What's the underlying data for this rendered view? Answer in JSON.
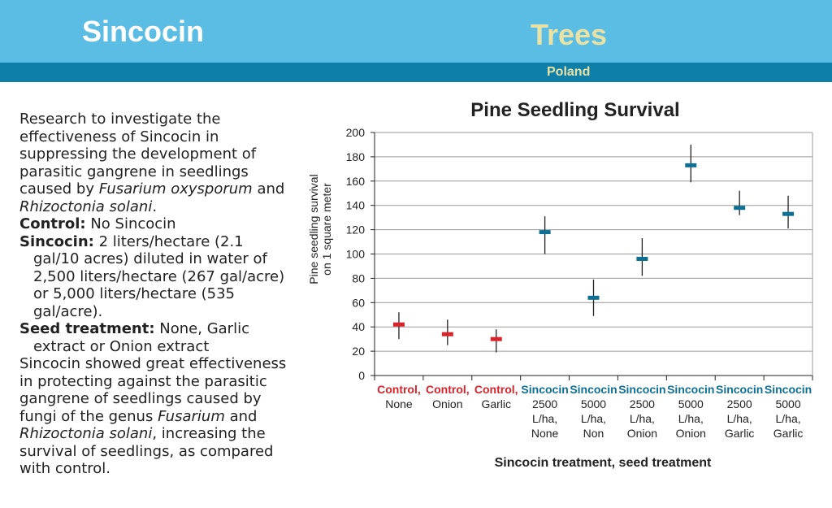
{
  "header": {
    "brand": "Sincocin",
    "section": "Trees",
    "country": "Poland"
  },
  "description": {
    "intro_a": "Research to investigate the effectiveness of Sincocin in suppressing the development of parasitic gangrene in seedlings caused by ",
    "intro_i1": "Fusarium oxysporum",
    "intro_b": " and ",
    "intro_i2": "Rhizoctonia solani",
    "intro_c": ".",
    "control_label": "Control:",
    "control_text": " No Sincocin",
    "sincocin_label": "Sincocin:",
    "sincocin_text": " 2 liters/hectare (2.1 gal/10 acres) diluted in water of 2,500 liters/hectare (267 gal/acre) or 5,000 liters/hectare (535 gal/acre).",
    "seed_label": "Seed treatment:",
    "seed_text": " None, Garlic extract or Onion extract",
    "concl_a": "Sincocin showed great effectiveness in protecting against the parasitic gangrene of seedlings caused by fungi of the genus ",
    "concl_i1": "Fusarium",
    "concl_b": " and ",
    "concl_i2": "Rhizoctonia solani",
    "concl_c": ", increasing the survival of seedlings, as compared with  control."
  },
  "chart_data": {
    "type": "scatter",
    "title": "Pine Seedling Survival",
    "ylabel": "Pine seedling survival on 1 square meter",
    "xlabel": "Sincocin treatment,  seed treatment",
    "ylim": [
      0,
      200
    ],
    "yticks": [
      0,
      20,
      40,
      60,
      80,
      100,
      120,
      140,
      160,
      180,
      200
    ],
    "grid": true,
    "categories": [
      {
        "lines": [
          "Control,",
          "None"
        ],
        "group": "control"
      },
      {
        "lines": [
          "Control,",
          "Onion"
        ],
        "group": "control"
      },
      {
        "lines": [
          "Control,",
          "Garlic"
        ],
        "group": "control"
      },
      {
        "lines": [
          "Sincocin",
          "2500",
          "L/ha,",
          "None"
        ],
        "group": "sincocin"
      },
      {
        "lines": [
          "Sincocin",
          "5000",
          "L/ha,",
          "Non"
        ],
        "group": "sincocin"
      },
      {
        "lines": [
          "Sincocin",
          "2500",
          "L/ha,",
          "Onion"
        ],
        "group": "sincocin"
      },
      {
        "lines": [
          "Sincocin",
          "5000",
          "L/ha,",
          "Onion"
        ],
        "group": "sincocin"
      },
      {
        "lines": [
          "Sincocin",
          "2500",
          "L/ha,",
          "Garlic"
        ],
        "group": "sincocin"
      },
      {
        "lines": [
          "Sincocin",
          "5000",
          "L/ha,",
          "Garlic"
        ],
        "group": "sincocin"
      }
    ],
    "values": [
      42,
      34,
      30,
      118,
      64,
      96,
      173,
      138,
      133
    ],
    "error_low": [
      30,
      25,
      19,
      100,
      49,
      82,
      159,
      132,
      121
    ],
    "error_high": [
      52,
      46,
      38,
      131,
      79,
      113,
      190,
      152,
      148
    ],
    "colors": {
      "control": "#d9222a",
      "sincocin": "#0e6f95"
    }
  }
}
